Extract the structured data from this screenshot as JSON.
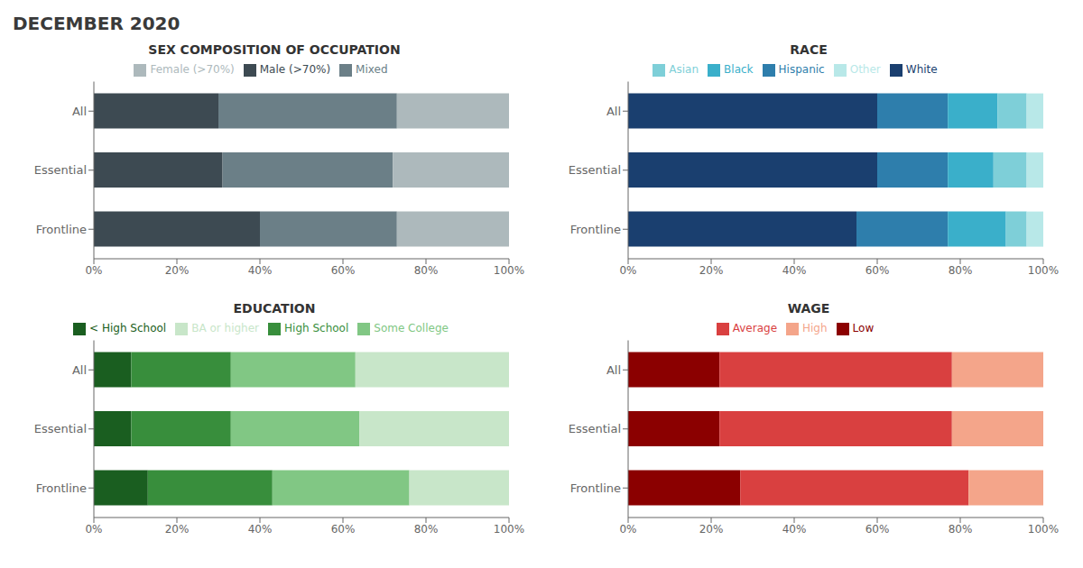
{
  "title": "DECEMBER 2020",
  "chart_data": [
    {
      "type": "bar",
      "title": "SEX COMPOSITION OF OCCUPATION",
      "orientation": "horizontal",
      "stacked": true,
      "grid": false,
      "legend": "top",
      "categories": [
        "All",
        "Essential",
        "Frontline"
      ],
      "series": [
        {
          "name": "Male (>70%)",
          "color": "#3d4a52",
          "values": [
            30,
            31,
            40
          ]
        },
        {
          "name": "Mixed",
          "color": "#6b7f87",
          "values": [
            43,
            41,
            33
          ]
        },
        {
          "name": "Female (>70%)",
          "color": "#adb9bc",
          "values": [
            27,
            28,
            27
          ]
        }
      ],
      "xlim": [
        0,
        100
      ],
      "xticks": [
        {
          "value": 0,
          "label": "0%"
        },
        {
          "value": 20,
          "label": "20%"
        },
        {
          "value": 40,
          "label": "40%"
        },
        {
          "value": 60,
          "label": "60%"
        },
        {
          "value": 80,
          "label": "80%"
        },
        {
          "value": 100,
          "label": "100%"
        }
      ]
    },
    {
      "type": "bar",
      "title": "RACE",
      "orientation": "horizontal",
      "stacked": true,
      "grid": false,
      "legend": "top",
      "categories": [
        "All",
        "Essential",
        "Frontline"
      ],
      "series": [
        {
          "name": "White",
          "color": "#1a3f6f",
          "values": [
            60,
            60,
            55
          ]
        },
        {
          "name": "Hispanic",
          "color": "#2e7eac",
          "values": [
            17,
            17,
            22
          ]
        },
        {
          "name": "Black",
          "color": "#3aafca",
          "values": [
            12,
            11,
            14
          ]
        },
        {
          "name": "Asian",
          "color": "#7ecfd8",
          "values": [
            7,
            8,
            5
          ]
        },
        {
          "name": "Other",
          "color": "#b8e8e8",
          "values": [
            4,
            4,
            4
          ]
        }
      ],
      "xlim": [
        0,
        100
      ],
      "xticks": [
        {
          "value": 0,
          "label": "0%"
        },
        {
          "value": 20,
          "label": "20%"
        },
        {
          "value": 40,
          "label": "40%"
        },
        {
          "value": 60,
          "label": "60%"
        },
        {
          "value": 80,
          "label": "80%"
        },
        {
          "value": 100,
          "label": "100%"
        }
      ]
    },
    {
      "type": "bar",
      "title": "EDUCATION",
      "orientation": "horizontal",
      "stacked": true,
      "grid": false,
      "legend": "top",
      "categories": [
        "All",
        "Essential",
        "Frontline"
      ],
      "series": [
        {
          "name": "< High School",
          "color": "#1a5e20",
          "values": [
            9,
            9,
            13
          ]
        },
        {
          "name": "High School",
          "color": "#388e3c",
          "values": [
            24,
            24,
            30
          ]
        },
        {
          "name": "Some College",
          "color": "#81c784",
          "values": [
            30,
            31,
            33
          ]
        },
        {
          "name": "BA or higher",
          "color": "#c8e6c9",
          "values": [
            37,
            36,
            24
          ]
        }
      ],
      "xlim": [
        0,
        100
      ],
      "xticks": [
        {
          "value": 0,
          "label": "0%"
        },
        {
          "value": 20,
          "label": "20%"
        },
        {
          "value": 40,
          "label": "40%"
        },
        {
          "value": 60,
          "label": "60%"
        },
        {
          "value": 80,
          "label": "80%"
        },
        {
          "value": 100,
          "label": "100%"
        }
      ]
    },
    {
      "type": "bar",
      "title": "WAGE",
      "orientation": "horizontal",
      "stacked": true,
      "grid": false,
      "legend": "top",
      "categories": [
        "All",
        "Essential",
        "Frontline"
      ],
      "series": [
        {
          "name": "Low",
          "color": "#8b0000",
          "values": [
            22,
            22,
            27
          ]
        },
        {
          "name": "Average",
          "color": "#d94040",
          "values": [
            56,
            56,
            55
          ]
        },
        {
          "name": "High",
          "color": "#f4a58a",
          "values": [
            22,
            22,
            18
          ]
        }
      ],
      "xlim": [
        0,
        100
      ],
      "xticks": [
        {
          "value": 0,
          "label": "0%"
        },
        {
          "value": 20,
          "label": "20%"
        },
        {
          "value": 40,
          "label": "40%"
        },
        {
          "value": 60,
          "label": "60%"
        },
        {
          "value": 80,
          "label": "80%"
        },
        {
          "value": 100,
          "label": "100%"
        }
      ]
    }
  ]
}
